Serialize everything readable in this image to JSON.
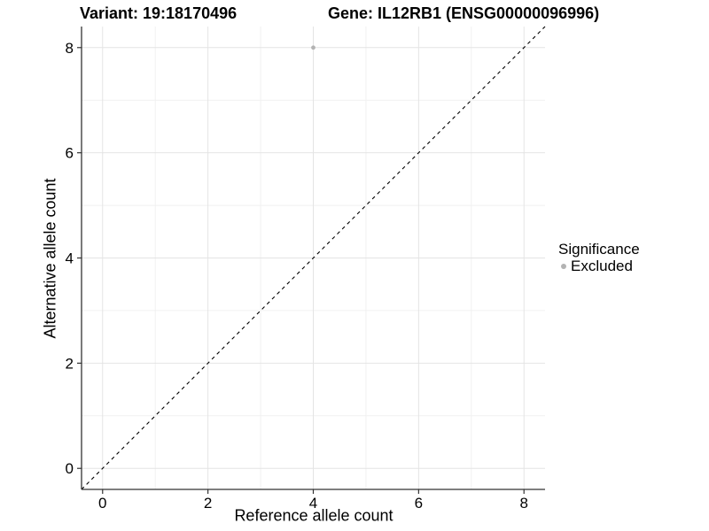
{
  "chart_data": {
    "type": "scatter",
    "title_left": "Variant: 19:18170496",
    "title_right": "Gene: IL12RB1 (ENSG00000096996)",
    "xlabel": "Reference allele count",
    "ylabel": "Alternative allele count",
    "xlim": [
      -0.4,
      8.4
    ],
    "ylim": [
      -0.4,
      8.4
    ],
    "xticks": [
      0,
      2,
      4,
      6,
      8
    ],
    "yticks": [
      0,
      2,
      4,
      6,
      8
    ],
    "xminor": [
      1,
      3,
      5,
      7
    ],
    "yminor": [
      1,
      3,
      5,
      7
    ],
    "grid": "major+minor on white panel, axis lines left and bottom only",
    "points": [
      {
        "x": 4,
        "y": 8,
        "significance": "Excluded"
      }
    ],
    "reference_line": {
      "kind": "identity",
      "slope": 1,
      "intercept": 0,
      "style": "dashed",
      "color": "#000000"
    },
    "legend": {
      "title": "Significance",
      "position": "right",
      "items": [
        {
          "label": "Excluded",
          "color": "#b3b3b3",
          "marker": "circle"
        }
      ]
    },
    "colors": {
      "point": "#b3b3b3",
      "grid_major": "#e4e4e4",
      "grid_minor": "#f1f1f1",
      "axis_line": "#333333",
      "tick": "#333333",
      "text": "#000000",
      "background": "#ffffff"
    }
  }
}
